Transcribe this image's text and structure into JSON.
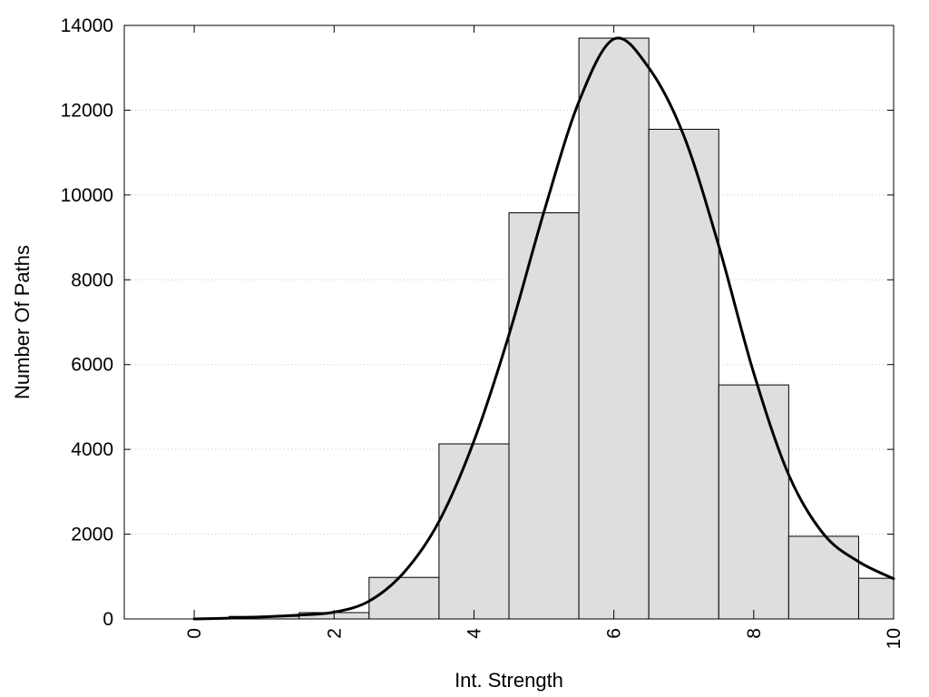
{
  "chart_data": {
    "type": "bar",
    "xlabel": "Int. Strength",
    "ylabel": "Number Of Paths",
    "xlim": [
      -1,
      10
    ],
    "ylim": [
      0,
      14000
    ],
    "xticks": [
      "0",
      "2",
      "4",
      "6",
      "8",
      "10"
    ],
    "yticks": [
      "0",
      "2000",
      "4000",
      "6000",
      "8000",
      "10000",
      "12000",
      "14000"
    ],
    "grid": "horizontal dotted",
    "bar_color": "#dedede",
    "bins": [
      {
        "x0": 0,
        "x1": 0.5,
        "value": 20
      },
      {
        "x0": 0.5,
        "x1": 1.5,
        "value": 60
      },
      {
        "x0": 1.5,
        "x1": 2.5,
        "value": 150
      },
      {
        "x0": 2.5,
        "x1": 3.5,
        "value": 980
      },
      {
        "x0": 3.5,
        "x1": 4.5,
        "value": 4130
      },
      {
        "x0": 4.5,
        "x1": 5.5,
        "value": 9580
      },
      {
        "x0": 5.5,
        "x1": 6.5,
        "value": 13700
      },
      {
        "x0": 6.5,
        "x1": 7.5,
        "value": 11550
      },
      {
        "x0": 7.5,
        "x1": 8.5,
        "value": 5520
      },
      {
        "x0": 8.5,
        "x1": 9.5,
        "value": 1950
      },
      {
        "x0": 9.5,
        "x1": 10,
        "value": 960
      }
    ],
    "curve": {
      "x": [
        0,
        0.5,
        1,
        1.5,
        2,
        2.5,
        3,
        3.5,
        4,
        4.5,
        5,
        5.5,
        6,
        6.5,
        7,
        7.5,
        8,
        8.5,
        9,
        9.5,
        10
      ],
      "y": [
        0,
        20,
        50,
        90,
        160,
        420,
        1100,
        2300,
        4200,
        6700,
        9600,
        12200,
        13680,
        13000,
        11400,
        8800,
        5800,
        3400,
        2000,
        1350,
        950
      ]
    }
  }
}
